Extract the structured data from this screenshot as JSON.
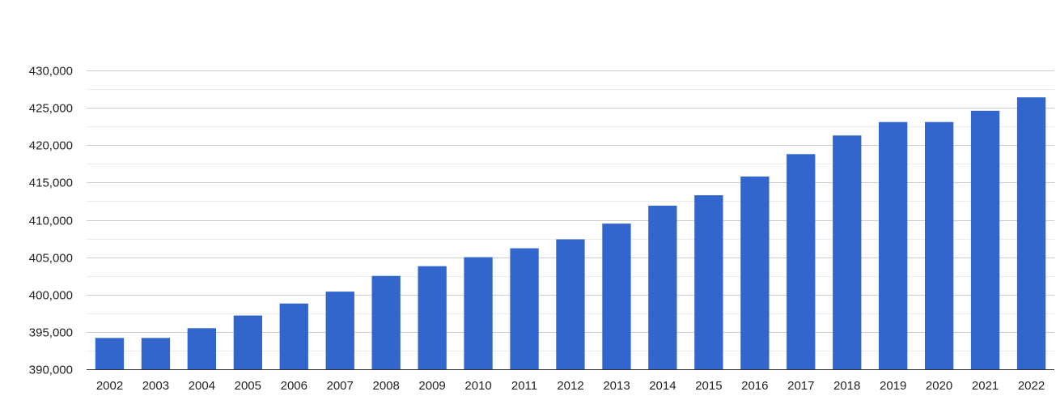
{
  "chart_data": {
    "type": "bar",
    "categories": [
      "2002",
      "2003",
      "2004",
      "2005",
      "2006",
      "2007",
      "2008",
      "2009",
      "2010",
      "2011",
      "2012",
      "2013",
      "2014",
      "2015",
      "2016",
      "2017",
      "2018",
      "2019",
      "2020",
      "2021",
      "2022"
    ],
    "values": [
      394200,
      394200,
      395500,
      397200,
      398800,
      400400,
      402500,
      403800,
      405000,
      406200,
      407400,
      409500,
      411900,
      413300,
      415800,
      418800,
      421300,
      423100,
      423100,
      424600,
      426400
    ],
    "ylim": [
      390000,
      430000
    ],
    "yticks": [
      390000,
      395000,
      400000,
      405000,
      410000,
      415000,
      420000,
      425000,
      430000
    ],
    "ytick_labels": [
      "390,000",
      "395,000",
      "400,000",
      "405,000",
      "410,000",
      "415,000",
      "420,000",
      "425,000",
      "430,000"
    ],
    "grid": true,
    "bar_color": "#3366cc"
  }
}
